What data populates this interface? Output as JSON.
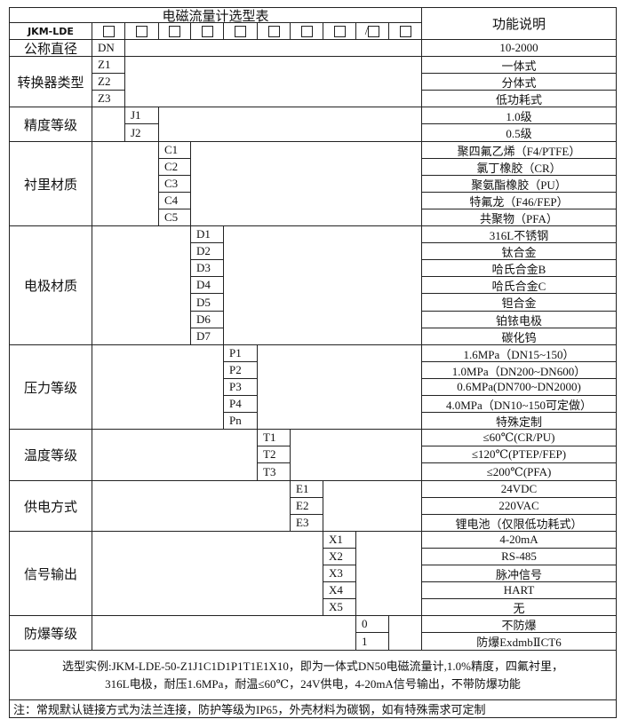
{
  "title": "电磁流量计选型表",
  "function_header": "功能说明",
  "model_prefix": "JKM-LDE",
  "slot_separator": "/",
  "diameter": {
    "label": "公称直径",
    "code": "DN",
    "desc": "10-2000"
  },
  "groups": [
    {
      "label": "转换器类型",
      "items": [
        {
          "code": "Z1",
          "desc": "一体式"
        },
        {
          "code": "Z2",
          "desc": "分体式"
        },
        {
          "code": "Z3",
          "desc": "低功耗式"
        }
      ]
    },
    {
      "label": "精度等级",
      "items": [
        {
          "code": "J1",
          "desc": "1.0级"
        },
        {
          "code": "J2",
          "desc": "0.5级"
        }
      ]
    },
    {
      "label": "衬里材质",
      "items": [
        {
          "code": "C1",
          "desc": "聚四氟乙烯（F4/PTFE）"
        },
        {
          "code": "C2",
          "desc": "氯丁橡胶（CR）"
        },
        {
          "code": "C3",
          "desc": "聚氨酯橡胶（PU）"
        },
        {
          "code": "C4",
          "desc": "特氟龙（F46/FEP）"
        },
        {
          "code": "C5",
          "desc": "共聚物（PFA）"
        }
      ]
    },
    {
      "label": "电极材质",
      "items": [
        {
          "code": "D1",
          "desc": "316L不锈钢"
        },
        {
          "code": "D2",
          "desc": "钛合金"
        },
        {
          "code": "D3",
          "desc": "哈氏合金B"
        },
        {
          "code": "D4",
          "desc": "哈氏合金C"
        },
        {
          "code": "D5",
          "desc": "钽合金"
        },
        {
          "code": "D6",
          "desc": "铂铱电极"
        },
        {
          "code": "D7",
          "desc": "碳化钨"
        }
      ]
    },
    {
      "label": "压力等级",
      "items": [
        {
          "code": "P1",
          "desc": "1.6MPa（DN15~150）"
        },
        {
          "code": "P2",
          "desc": "1.0MPa（DN200~DN600）"
        },
        {
          "code": "P3",
          "desc": "0.6MPa(DN700~DN2000)"
        },
        {
          "code": "P4",
          "desc": "4.0MPa（DN10~150可定做）"
        },
        {
          "code": "Pn",
          "desc": "特殊定制"
        }
      ]
    },
    {
      "label": "温度等级",
      "items": [
        {
          "code": "T1",
          "desc": "≤60℃(CR/PU)"
        },
        {
          "code": "T2",
          "desc": "≤120℃(PTEP/FEP)"
        },
        {
          "code": "T3",
          "desc": "≤200℃(PFA)"
        }
      ]
    },
    {
      "label": "供电方式",
      "items": [
        {
          "code": "E1",
          "desc": "24VDC"
        },
        {
          "code": "E2",
          "desc": "220VAC"
        },
        {
          "code": "E3",
          "desc": "锂电池（仅限低功耗式）"
        }
      ]
    },
    {
      "label": "信号输出",
      "items": [
        {
          "code": "X1",
          "desc": "4-20mA"
        },
        {
          "code": "X2",
          "desc": "RS-485"
        },
        {
          "code": "X3",
          "desc": "脉冲信号"
        },
        {
          "code": "X4",
          "desc": "HART"
        },
        {
          "code": "X5",
          "desc": "无"
        }
      ]
    },
    {
      "label": "防爆等级",
      "items": [
        {
          "code": "0",
          "desc": "不防爆"
        },
        {
          "code": "1",
          "desc": "防爆ExdmbⅡCT6"
        }
      ]
    }
  ],
  "example": {
    "line1": "选型实例:JKM-LDE-50-Z1J1C1D1P1T1E1X10，即为一体式DN50电磁流量计,1.0%精度，四氟衬里，",
    "line2": "316L电极，耐压1.6MPa，耐温≤60℃，24V供电，4-20mA信号输出，不带防爆功能"
  },
  "note": "注：常规默认链接方式为法兰连接，防护等级为IP65，外壳材料为碳钢，如有特殊需求可定制"
}
